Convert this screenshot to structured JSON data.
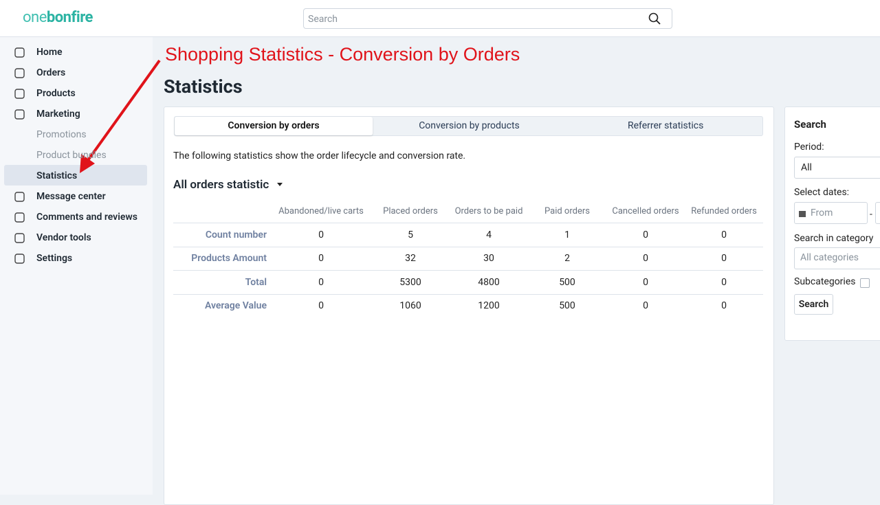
{
  "header": {
    "logo": [
      "one",
      "bonfire"
    ],
    "search_placeholder": "Search"
  },
  "sidebar": {
    "items": [
      "Home",
      "Orders",
      "Products",
      "Marketing",
      "Promotions",
      "Product bundles",
      "Statistics",
      "Message center",
      "Comments and reviews",
      "Vendor tools",
      "Settings"
    ]
  },
  "annotation": "Shopping Statistics - Conversion by Orders",
  "page_title": "Statistics",
  "tabs": [
    "Conversion by orders",
    "Conversion by products",
    "Referrer statistics"
  ],
  "description": "The following statistics show the order lifecycle and conversion rate.",
  "section_title": "All orders statistic",
  "table": {
    "columns": [
      "Abandoned/live carts",
      "Placed orders",
      "Orders to be paid",
      "Paid orders",
      "Cancelled orders",
      "Refunded orders"
    ],
    "rows": [
      {
        "label": "Count number",
        "cells": [
          0,
          5,
          4,
          1,
          0,
          0
        ]
      },
      {
        "label": "Products Amount",
        "cells": [
          0,
          32,
          30,
          2,
          0,
          0
        ]
      },
      {
        "label": "Total",
        "cells": [
          0,
          5300,
          4800,
          500,
          0,
          0
        ]
      },
      {
        "label": "Average Value",
        "cells": [
          0,
          1060,
          1200,
          500,
          0,
          0
        ]
      }
    ]
  },
  "filters": {
    "title": "Search",
    "period_label": "Period:",
    "period_value": "All",
    "dates_label": "Select dates:",
    "from_placeholder": "From",
    "dates_separator": "-",
    "category_label": "Search in category",
    "category_placeholder": "All categories",
    "subcategories_label": "Subcategories",
    "button": "Search"
  }
}
